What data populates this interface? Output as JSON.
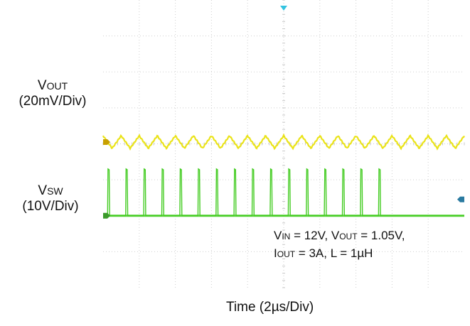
{
  "chart_data": {
    "type": "line",
    "title": "",
    "xlabel": "Time (2µs/Div)",
    "x_scale": {
      "value": 2,
      "unit": "µs/Div"
    },
    "x_divisions": 10,
    "y_divisions": 8,
    "grid": true,
    "series": [
      {
        "name": "VOUT",
        "label": {
          "main": "V",
          "sub": "OUT",
          "scale": "(20mV/Div)"
        },
        "color": "#e8e000",
        "waveform": "ripple",
        "scale": "20mV/Div",
        "ripple_peak_to_peak_div": 0.35,
        "period_div": 0.5,
        "level_div": 4.05
      },
      {
        "name": "VSW",
        "label": {
          "main": "V",
          "sub": "SW",
          "scale": "(10V/Div)"
        },
        "color": "#44cc22",
        "waveform": "pulse",
        "scale": "10V/Div",
        "period_div": 0.5,
        "pulse_count": 16,
        "pulse_height_div": 1.3,
        "level_div": 2.0
      }
    ],
    "trigger_marker_color": "#33c3e0",
    "ch1_marker_color": "#c8a000",
    "ch2_marker_color": "#3a9a2a",
    "trigger_level_marker_color": "#2a7aa0"
  },
  "conditions": {
    "line1": {
      "a": "V",
      "a_sub": "IN",
      "b": " = 12V, V",
      "b_sub": "OUT",
      "c": " = 1.05V,"
    },
    "line2": {
      "a": "I",
      "a_sub": "OUT",
      "b": " = 3A, L = 1µH"
    }
  }
}
